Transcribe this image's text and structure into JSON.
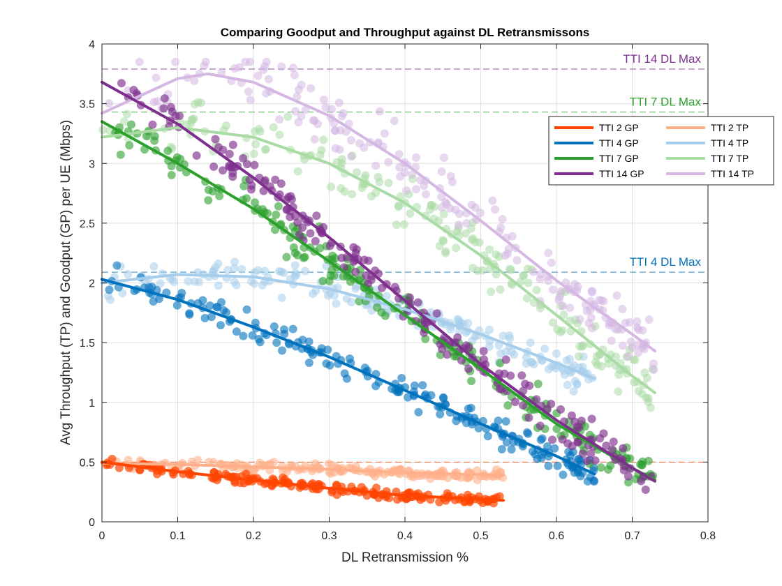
{
  "chart_data": {
    "type": "scatter",
    "title": "Comparing Goodput and Throughput against DL Retransmissons",
    "xlabel": "DL Retransmission %",
    "ylabel": "Avg Throughput (TP) and Goodput (GP) per UE (Mbps)",
    "xlim": [
      0,
      0.8
    ],
    "ylim": [
      0,
      4
    ],
    "xticks": [
      0,
      0.1,
      0.2,
      0.3,
      0.4,
      0.5,
      0.6,
      0.7,
      0.8
    ],
    "xtick_labels": [
      "0",
      "0.1",
      "0.2",
      "0.3",
      "0.4",
      "0.5",
      "0.6",
      "0.7",
      "0.8"
    ],
    "yticks": [
      0,
      0.5,
      1,
      1.5,
      2,
      2.5,
      3,
      3.5,
      4
    ],
    "ytick_labels": [
      "0",
      "0.5",
      "1",
      "1.5",
      "2",
      "2.5",
      "3",
      "3.5",
      "4"
    ],
    "grid": true,
    "legend_position": "top-right",
    "max_lines": [
      {
        "label": "TTI 14 DL Max",
        "y": 3.79,
        "color": "#7E2F8E"
      },
      {
        "label": "TTI 7 DL Max",
        "y": 3.43,
        "color": "#2CA02C"
      },
      {
        "label": "TTI 4 DL Max",
        "y": 2.09,
        "color": "#0072BD"
      },
      {
        "label": "",
        "y": 0.5,
        "color": "#FF4500"
      }
    ],
    "series": [
      {
        "name": "TTI 2 GP",
        "color": "#FF4500",
        "x_range": [
          0,
          0.53
        ],
        "fit": [
          [
            0,
            0.5
          ],
          [
            0.1,
            0.42
          ],
          [
            0.2,
            0.35
          ],
          [
            0.3,
            0.28
          ],
          [
            0.4,
            0.22
          ],
          [
            0.53,
            0.18
          ]
        ],
        "scatter": {
          "n": 170,
          "spread": 0.04,
          "alpha": 0.7
        }
      },
      {
        "name": "TTI 4 GP",
        "color": "#0072BD",
        "x_range": [
          0,
          0.65
        ],
        "fit": [
          [
            0,
            2.03
          ],
          [
            0.1,
            1.86
          ],
          [
            0.2,
            1.63
          ],
          [
            0.3,
            1.38
          ],
          [
            0.4,
            1.1
          ],
          [
            0.5,
            0.82
          ],
          [
            0.6,
            0.55
          ],
          [
            0.65,
            0.4
          ]
        ],
        "scatter": {
          "n": 200,
          "spread": 0.13,
          "alpha": 0.6
        }
      },
      {
        "name": "TTI 7 GP",
        "color": "#2CA02C",
        "x_range": [
          0,
          0.73
        ],
        "fit": [
          [
            0,
            3.35
          ],
          [
            0.1,
            3.0
          ],
          [
            0.2,
            2.62
          ],
          [
            0.3,
            2.18
          ],
          [
            0.4,
            1.73
          ],
          [
            0.5,
            1.28
          ],
          [
            0.6,
            0.82
          ],
          [
            0.7,
            0.45
          ],
          [
            0.73,
            0.35
          ]
        ],
        "scatter": {
          "n": 200,
          "spread": 0.16,
          "alpha": 0.6
        }
      },
      {
        "name": "TTI 14 GP",
        "color": "#7E2F8E",
        "x_range": [
          0,
          0.73
        ],
        "fit": [
          [
            0,
            3.68
          ],
          [
            0.1,
            3.33
          ],
          [
            0.2,
            2.88
          ],
          [
            0.3,
            2.38
          ],
          [
            0.4,
            1.85
          ],
          [
            0.5,
            1.32
          ],
          [
            0.6,
            0.85
          ],
          [
            0.7,
            0.45
          ],
          [
            0.73,
            0.34
          ]
        ],
        "scatter": {
          "n": 200,
          "spread": 0.16,
          "alpha": 0.65
        }
      },
      {
        "name": "TTI 2 TP",
        "color": "#FFB08A",
        "x_range": [
          0,
          0.53
        ],
        "fit": [
          [
            0,
            0.49
          ],
          [
            0.1,
            0.48
          ],
          [
            0.2,
            0.46
          ],
          [
            0.3,
            0.44
          ],
          [
            0.4,
            0.41
          ],
          [
            0.53,
            0.39
          ]
        ],
        "scatter": {
          "n": 170,
          "spread": 0.04,
          "alpha": 0.6
        }
      },
      {
        "name": "TTI 4 TP",
        "color": "#A6CDEB",
        "x_range": [
          0,
          0.65
        ],
        "fit": [
          [
            0,
            2.0
          ],
          [
            0.1,
            2.07
          ],
          [
            0.2,
            2.05
          ],
          [
            0.3,
            1.95
          ],
          [
            0.4,
            1.78
          ],
          [
            0.5,
            1.57
          ],
          [
            0.6,
            1.33
          ],
          [
            0.65,
            1.2
          ]
        ],
        "scatter": {
          "n": 180,
          "spread": 0.14,
          "alpha": 0.55
        }
      },
      {
        "name": "TTI 7 TP",
        "color": "#A9DBA4",
        "x_range": [
          0,
          0.73
        ],
        "fit": [
          [
            0,
            3.22
          ],
          [
            0.1,
            3.3
          ],
          [
            0.2,
            3.22
          ],
          [
            0.3,
            3.0
          ],
          [
            0.4,
            2.67
          ],
          [
            0.5,
            2.23
          ],
          [
            0.6,
            1.73
          ],
          [
            0.7,
            1.22
          ],
          [
            0.73,
            1.08
          ]
        ],
        "scatter": {
          "n": 190,
          "spread": 0.22,
          "alpha": 0.55
        }
      },
      {
        "name": "TTI 14 TP",
        "color": "#D4B7E2",
        "x_range": [
          0,
          0.73
        ],
        "fit": [
          [
            0,
            3.42
          ],
          [
            0.1,
            3.71
          ],
          [
            0.14,
            3.75
          ],
          [
            0.2,
            3.68
          ],
          [
            0.3,
            3.4
          ],
          [
            0.4,
            3.0
          ],
          [
            0.5,
            2.52
          ],
          [
            0.6,
            2.02
          ],
          [
            0.7,
            1.57
          ],
          [
            0.73,
            1.43
          ]
        ],
        "scatter": {
          "n": 190,
          "spread": 0.24,
          "alpha": 0.55
        }
      }
    ]
  }
}
